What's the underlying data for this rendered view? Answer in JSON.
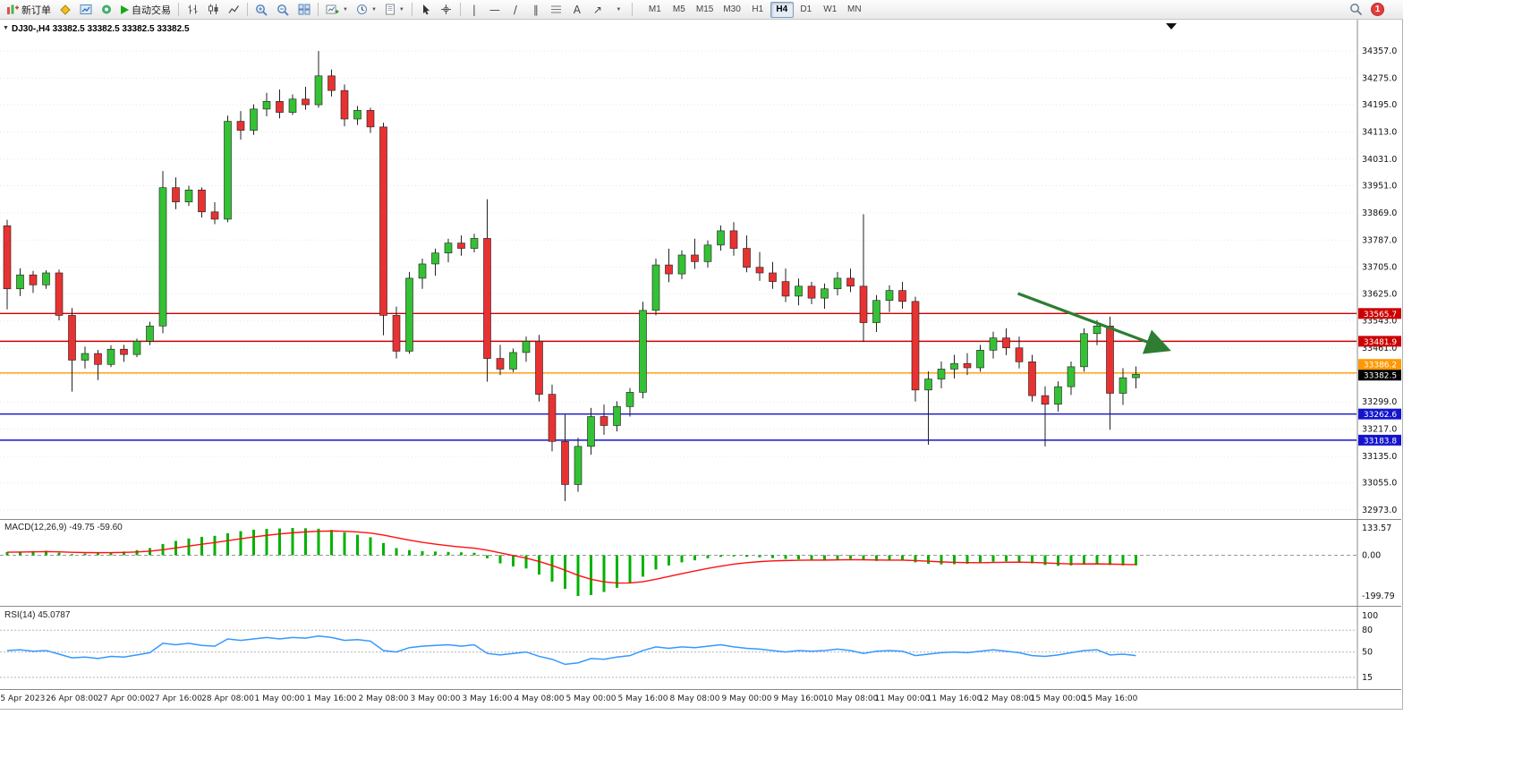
{
  "toolbar": {
    "new_order_label": "新订单",
    "autotrading_label": "自动交易",
    "timeframe_labels": [
      "M1",
      "M5",
      "M15",
      "M30",
      "H1",
      "H4",
      "D1",
      "W1",
      "MN"
    ],
    "active_timeframe": "H4",
    "notification_count": "1",
    "accent_colors": {
      "autotrading_green": "#18a818",
      "badge_red": "#e23c3c"
    }
  },
  "chart_window": {
    "readout": "DJ30-,H4 33382.5 33382.5 33382.5 33382.5",
    "macd_label": "MACD(12,26,9) -49.75 -59.60",
    "rsi_label": "RSI(14) 45.0787"
  },
  "chart_data": {
    "type": "candlestick",
    "symbol": "DJ30-",
    "timeframe": "H4",
    "ohlc_readout": {
      "open": 33382.5,
      "high": 33382.5,
      "low": 33382.5,
      "close": 33382.5
    },
    "up_color": "#35c135",
    "down_color": "#e83232",
    "price_axis": {
      "min": 32973.0,
      "max": 34357.0,
      "ticks": [
        34357.0,
        34275.0,
        34195.0,
        34113.0,
        34031.0,
        33951.0,
        33869.0,
        33787.0,
        33705.0,
        33625.0,
        33543.0,
        33461.0,
        33381.0,
        33299.0,
        33217.0,
        33135.0,
        33055.0,
        32973.0
      ]
    },
    "time_labels": [
      "25 Apr 2023",
      "26 Apr 08:00",
      "27 Apr 00:00",
      "27 Apr 16:00",
      "28 Apr 08:00",
      "1 May 00:00",
      "1 May 16:00",
      "2 May 08:00",
      "3 May 00:00",
      "3 May 16:00",
      "4 May 08:00",
      "5 May 00:00",
      "5 May 16:00",
      "8 May 08:00",
      "9 May 00:00",
      "9 May 16:00",
      "10 May 08:00",
      "11 May 00:00",
      "11 May 16:00",
      "12 May 08:00",
      "15 May 00:00",
      "15 May 16:00"
    ],
    "candles": [
      [
        33830,
        33848,
        33578,
        33640
      ],
      [
        33640,
        33702,
        33618,
        33682
      ],
      [
        33682,
        33694,
        33628,
        33652
      ],
      [
        33652,
        33696,
        33640,
        33688
      ],
      [
        33688,
        33698,
        33545,
        33560
      ],
      [
        33560,
        33582,
        33330,
        33425
      ],
      [
        33425,
        33466,
        33400,
        33445
      ],
      [
        33445,
        33456,
        33365,
        33412
      ],
      [
        33412,
        33470,
        33404,
        33458
      ],
      [
        33458,
        33471,
        33420,
        33442
      ],
      [
        33442,
        33490,
        33434,
        33482
      ],
      [
        33482,
        33541,
        33470,
        33528
      ],
      [
        33528,
        33995,
        33506,
        33945
      ],
      [
        33945,
        33976,
        33880,
        33902
      ],
      [
        33902,
        33951,
        33890,
        33938
      ],
      [
        33938,
        33946,
        33855,
        33872
      ],
      [
        33872,
        33901,
        33835,
        33850
      ],
      [
        33850,
        34162,
        33841,
        34145
      ],
      [
        34145,
        34176,
        34090,
        34118
      ],
      [
        34118,
        34196,
        34104,
        34182
      ],
      [
        34182,
        34231,
        34160,
        34205
      ],
      [
        34205,
        34241,
        34154,
        34172
      ],
      [
        34172,
        34226,
        34164,
        34212
      ],
      [
        34212,
        34249,
        34180,
        34195
      ],
      [
        34195,
        34357,
        34186,
        34282
      ],
      [
        34282,
        34301,
        34220,
        34238
      ],
      [
        34238,
        34256,
        34130,
        34152
      ],
      [
        34152,
        34191,
        34134,
        34178
      ],
      [
        34178,
        34186,
        34110,
        34128
      ],
      [
        34128,
        34141,
        33500,
        33560
      ],
      [
        33560,
        33586,
        33430,
        33452
      ],
      [
        33452,
        33691,
        33444,
        33672
      ],
      [
        33672,
        33731,
        33640,
        33715
      ],
      [
        33715,
        33761,
        33680,
        33748
      ],
      [
        33748,
        33791,
        33720,
        33778
      ],
      [
        33778,
        33801,
        33740,
        33762
      ],
      [
        33762,
        33806,
        33750,
        33792
      ],
      [
        33792,
        33910,
        33360,
        33430
      ],
      [
        33430,
        33471,
        33380,
        33398
      ],
      [
        33398,
        33460,
        33389,
        33448
      ],
      [
        33448,
        33496,
        33420,
        33482
      ],
      [
        33482,
        33501,
        33300,
        33322
      ],
      [
        33322,
        33351,
        33150,
        33180
      ],
      [
        33180,
        33261,
        33000,
        33050
      ],
      [
        33050,
        33191,
        33028,
        33165
      ],
      [
        33165,
        33281,
        33140,
        33255
      ],
      [
        33255,
        33291,
        33200,
        33228
      ],
      [
        33228,
        33301,
        33210,
        33285
      ],
      [
        33285,
        33341,
        33255,
        33328
      ],
      [
        33328,
        33601,
        33310,
        33575
      ],
      [
        33575,
        33731,
        33560,
        33712
      ],
      [
        33712,
        33761,
        33660,
        33685
      ],
      [
        33685,
        33756,
        33669,
        33742
      ],
      [
        33742,
        33791,
        33700,
        33722
      ],
      [
        33722,
        33786,
        33704,
        33772
      ],
      [
        33772,
        33831,
        33755,
        33815
      ],
      [
        33815,
        33841,
        33740,
        33762
      ],
      [
        33762,
        33801,
        33690,
        33705
      ],
      [
        33705,
        33751,
        33664,
        33688
      ],
      [
        33688,
        33721,
        33640,
        33662
      ],
      [
        33662,
        33701,
        33600,
        33618
      ],
      [
        33618,
        33671,
        33590,
        33648
      ],
      [
        33648,
        33661,
        33594,
        33612
      ],
      [
        33612,
        33656,
        33580,
        33640
      ],
      [
        33640,
        33691,
        33620,
        33672
      ],
      [
        33672,
        33701,
        33630,
        33648
      ],
      [
        33648,
        33865,
        33480,
        33538
      ],
      [
        33538,
        33621,
        33510,
        33605
      ],
      [
        33605,
        33651,
        33570,
        33635
      ],
      [
        33635,
        33661,
        33580,
        33602
      ],
      [
        33602,
        33616,
        33300,
        33335
      ],
      [
        33335,
        33391,
        33170,
        33368
      ],
      [
        33368,
        33421,
        33340,
        33398
      ],
      [
        33398,
        33441,
        33370,
        33415
      ],
      [
        33415,
        33446,
        33380,
        33402
      ],
      [
        33402,
        33471,
        33390,
        33455
      ],
      [
        33455,
        33511,
        33430,
        33492
      ],
      [
        33492,
        33521,
        33440,
        33462
      ],
      [
        33462,
        33496,
        33400,
        33420
      ],
      [
        33420,
        33441,
        33300,
        33318
      ],
      [
        33318,
        33346,
        33165,
        33292
      ],
      [
        33292,
        33361,
        33270,
        33345
      ],
      [
        33345,
        33421,
        33320,
        33405
      ],
      [
        33405,
        33521,
        33390,
        33505
      ],
      [
        33505,
        33546,
        33470,
        33528
      ],
      [
        33528,
        33556,
        33215,
        33325
      ],
      [
        33325,
        33401,
        33290,
        33372
      ],
      [
        33372,
        33406,
        33340,
        33382.5
      ]
    ],
    "levels": [
      {
        "price": 33565.7,
        "color": "#cc0000"
      },
      {
        "price": 33481.9,
        "color": "#cc0000"
      },
      {
        "price": 33386.2,
        "color": "#ff9800"
      },
      {
        "price": 33262.6,
        "color": "#1414cc"
      },
      {
        "price": 33183.8,
        "color": "#1414cc"
      }
    ],
    "current_price": {
      "value": 33382.5,
      "badge_color": "#000000"
    },
    "annotations": [
      {
        "type": "arrow",
        "from": {
          "index": 77.9,
          "price": 33626
        },
        "to": {
          "index": 89.3,
          "price": 33459
        },
        "color": "#2e7d32"
      }
    ],
    "indicators": [
      {
        "name": "MACD",
        "params": [
          12,
          26,
          9
        ],
        "current_main": -49.75,
        "current_signal": -59.6,
        "scale_labels": [
          133.57,
          0.0,
          -199.79
        ],
        "histogram_color": "#00b200",
        "signal_color": "#ff1010",
        "histogram": [
          15,
          18,
          20,
          22,
          12,
          5,
          8,
          10,
          14,
          18,
          25,
          35,
          55,
          70,
          82,
          90,
          95,
          108,
          118,
          125,
          129,
          131,
          133.57,
          132,
          130,
          124,
          112,
          100,
          88,
          60,
          35,
          25,
          20,
          18,
          16,
          14,
          12,
          -15,
          -40,
          -55,
          -65,
          -95,
          -130,
          -165,
          -199.79,
          -195,
          -180,
          -160,
          -135,
          -105,
          -70,
          -50,
          -35,
          -25,
          -15,
          -8,
          -6,
          -8,
          -10,
          -14,
          -18,
          -20,
          -22,
          -22,
          -20,
          -18,
          -25,
          -28,
          -26,
          -24,
          -35,
          -42,
          -45,
          -44,
          -42,
          -38,
          -32,
          -30,
          -32,
          -40,
          -48,
          -52,
          -50,
          -45,
          -40,
          -48,
          -50,
          -49.75
        ]
      },
      {
        "name": "RSI",
        "params": [
          14
        ],
        "current": 45.0787,
        "scale_labels": [
          100,
          80,
          50,
          15
        ],
        "levels": [
          80,
          50,
          15
        ],
        "line_color": "#3399ff",
        "values": [
          52,
          53,
          51,
          52,
          47,
          42,
          43,
          41,
          44,
          43,
          46,
          49,
          62,
          60,
          62,
          59,
          58,
          68,
          66,
          68,
          70,
          68,
          70,
          69,
          72,
          70,
          66,
          67,
          65,
          52,
          50,
          56,
          58,
          59,
          60,
          58,
          60,
          48,
          46,
          48,
          50,
          44,
          40,
          33,
          35,
          41,
          40,
          43,
          45,
          52,
          57,
          55,
          57,
          56,
          58,
          60,
          57,
          55,
          54,
          52,
          50,
          52,
          51,
          52,
          54,
          52,
          48,
          51,
          52,
          51,
          45,
          47,
          49,
          50,
          49,
          51,
          53,
          51,
          49,
          45,
          44,
          46,
          49,
          52,
          53,
          46,
          47,
          45.08
        ]
      }
    ]
  }
}
